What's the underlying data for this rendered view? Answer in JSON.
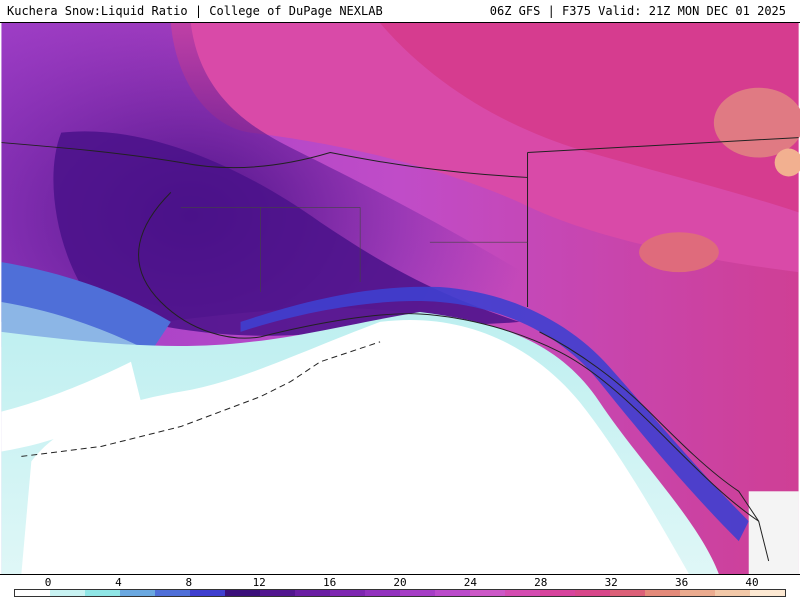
{
  "header": {
    "left_text": "Kuchera Snow:Liquid Ratio | College of DuPage NEXLAB",
    "right_text": "06Z GFS | F375 Valid: 21Z MON DEC 01 2025"
  },
  "colorbar": {
    "ticks": [
      "0",
      "4",
      "8",
      "12",
      "16",
      "20",
      "24",
      "28",
      "32",
      "36",
      "40"
    ],
    "colors": [
      "#ffffff",
      "#c8f2f2",
      "#8fe6e6",
      "#6aa8e0",
      "#4f6fd8",
      "#3f3fcf",
      "#3b0f7a",
      "#52168f",
      "#6a1ea3",
      "#7e27b1",
      "#9232be",
      "#a63ec6",
      "#bb4bcb",
      "#cc58c7",
      "#d44cb1",
      "#d7449d",
      "#d8478a",
      "#dc6078",
      "#e48a7a",
      "#ebab8f",
      "#f2c8a8",
      "#fde9d3"
    ]
  },
  "map": {
    "region": "Alaska",
    "label": "Kuchera snow-to-liquid ratio shaded field"
  }
}
